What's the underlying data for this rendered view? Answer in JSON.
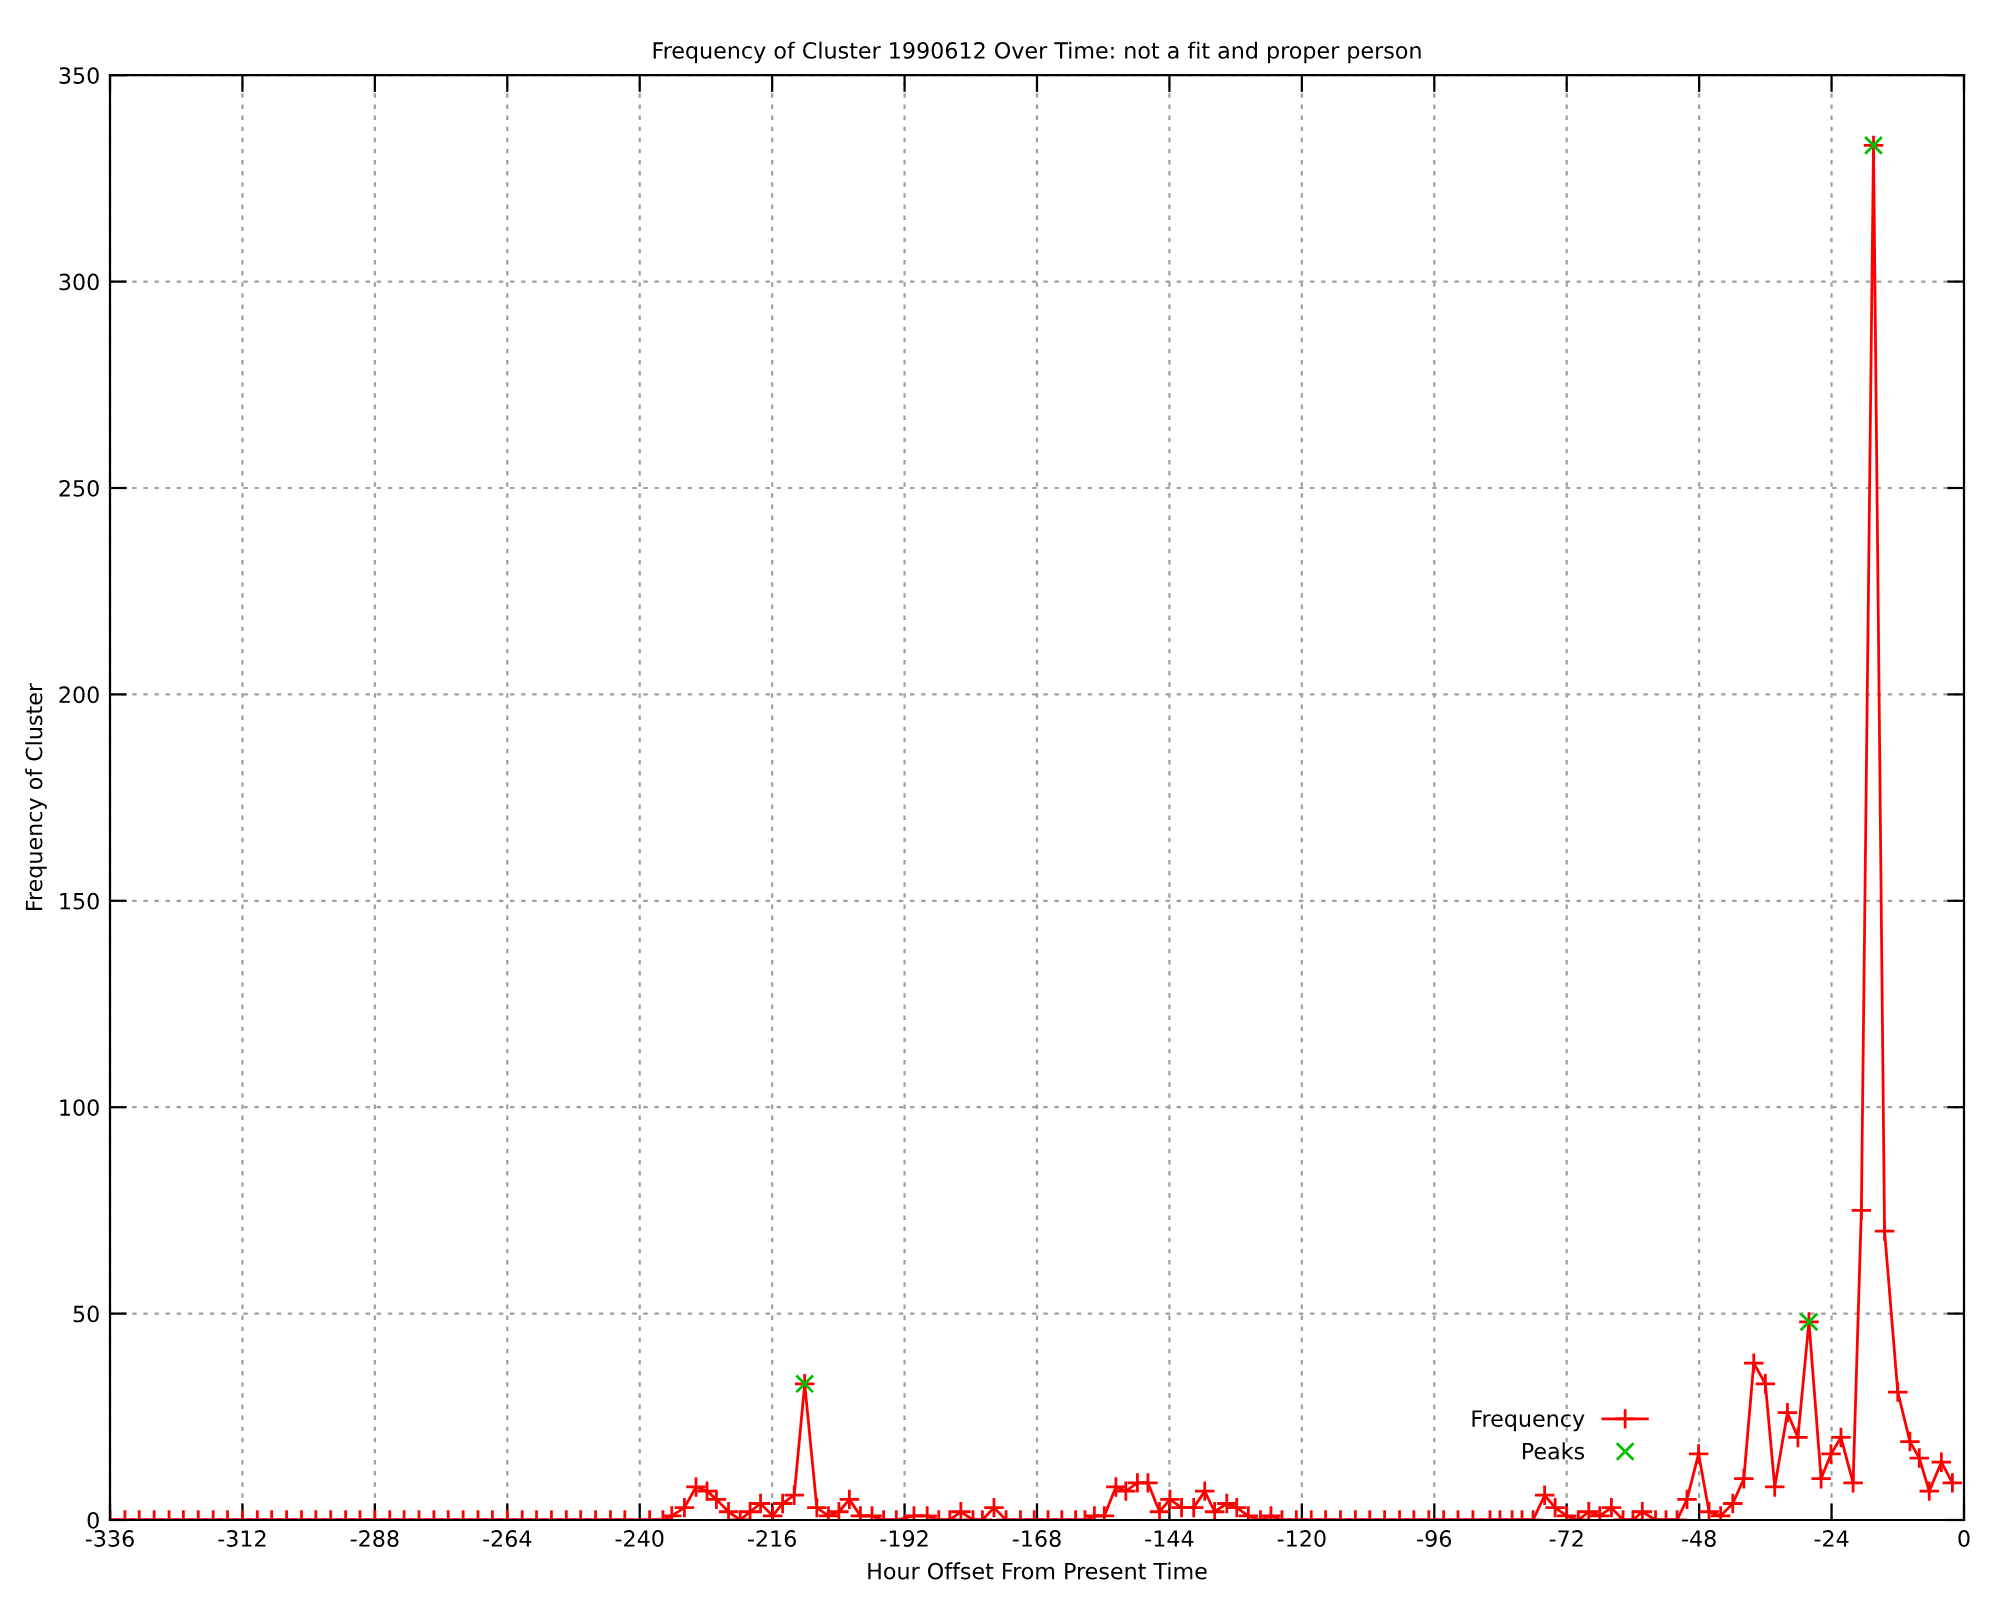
{
  "chart_data": {
    "type": "line",
    "title": "Frequency of Cluster 1990612 Over Time: not a fit and proper person",
    "xlabel": "Hour Offset From Present Time",
    "ylabel": "Frequency of Cluster",
    "xlim": [
      -336,
      0
    ],
    "ylim": [
      0,
      350
    ],
    "xticks": [
      -336,
      -312,
      -288,
      -264,
      -240,
      -216,
      -192,
      -168,
      -144,
      -120,
      -96,
      -72,
      -48,
      -24,
      0
    ],
    "yticks": [
      0,
      50,
      100,
      150,
      200,
      250,
      300,
      350
    ],
    "grid": true,
    "legend": "bottom right",
    "series": [
      {
        "name": "Frequency",
        "type": "line",
        "color": "#ff0000",
        "marker": "cross",
        "line_style": "solid",
        "x": [
          -336,
          -333.3,
          -330.7,
          -328,
          -325.3,
          -322.7,
          -320,
          -317.3,
          -314.7,
          -312,
          -309.3,
          -306.7,
          -304,
          -301.3,
          -298.7,
          -296,
          -293.3,
          -290.7,
          -288,
          -285.3,
          -282.7,
          -280,
          -277.3,
          -274.7,
          -272,
          -269.3,
          -266.7,
          -264,
          -261.3,
          -258.7,
          -256,
          -253.3,
          -250.7,
          -248,
          -245.3,
          -242.7,
          -238.2,
          -235.8,
          -234.2,
          -231.9,
          -229.8,
          -227.8,
          -226.1,
          -223.9,
          -221.8,
          -220,
          -218.1,
          -215.9,
          -214.1,
          -212,
          -210.1,
          -207.9,
          -205.8,
          -203.9,
          -202,
          -200,
          -197.9,
          -195.8,
          -193.5,
          -190.3,
          -187.9,
          -185.8,
          -183.8,
          -181.8,
          -179.6,
          -177.9,
          -175.8,
          -173.6,
          -171,
          -168.5,
          -166,
          -163.5,
          -161,
          -159.3,
          -157.6,
          -155.8,
          -153.7,
          -151.9,
          -149.8,
          -147.9,
          -145.8,
          -143.9,
          -141.8,
          -139.6,
          -137.6,
          -135.8,
          -133.6,
          -131.8,
          -129.7,
          -127.5,
          -125.6,
          -123.6,
          -121,
          -118.3,
          -115.7,
          -113,
          -110.3,
          -107.7,
          -105,
          -102.3,
          -99.7,
          -97,
          -94.3,
          -91.7,
          -89,
          -85.9,
          -84.1,
          -81.9,
          -80.1,
          -78.1,
          -76,
          -74.1,
          -72,
          -69.9,
          -68,
          -66,
          -63.9,
          -61.8,
          -60,
          -58.3,
          -55.9,
          -54,
          -52,
          -50.2,
          -48.1,
          -46.2,
          -44.1,
          -41.9,
          -39.9,
          -38.1,
          -36,
          -34.3,
          -32,
          -30.1,
          -28.1,
          -25.9,
          -24.1,
          -22.3,
          -20.1,
          -18.6,
          -16.4,
          -14.4,
          -12,
          -9.8,
          -8.1,
          -6.3,
          -4.1,
          -2.1
        ],
        "values": [
          0,
          0,
          0,
          0,
          0,
          0,
          0,
          0,
          0,
          0,
          0,
          0,
          0,
          0,
          0,
          0,
          0,
          0,
          0,
          0,
          0,
          0,
          0,
          0,
          0,
          0,
          0,
          0,
          0,
          0,
          0,
          0,
          0,
          0,
          0,
          0,
          0,
          0,
          1,
          3,
          8,
          7,
          5,
          2,
          0,
          2,
          4,
          1,
          4,
          6,
          33,
          3,
          1,
          2,
          5,
          1,
          1,
          0,
          0,
          1,
          1,
          0,
          0,
          2,
          0,
          0,
          3,
          0,
          0,
          0,
          0,
          0,
          0,
          0,
          1,
          1,
          8,
          7,
          9,
          9,
          2,
          5,
          3,
          3,
          7,
          2,
          4,
          3,
          1,
          0,
          1,
          0,
          0,
          0,
          0,
          0,
          0,
          0,
          0,
          0,
          0,
          0,
          0,
          0,
          0,
          0,
          0,
          0,
          0,
          0,
          6,
          3,
          1,
          0,
          2,
          1,
          3,
          0,
          0,
          2,
          0,
          0,
          0,
          5,
          16,
          2,
          1,
          4,
          10,
          38,
          33,
          8,
          26,
          20,
          48,
          10,
          16,
          20,
          9,
          75,
          333,
          70,
          31,
          19,
          15,
          7,
          14,
          9
        ]
      },
      {
        "name": "Peaks",
        "type": "scatter",
        "color": "#00c000",
        "marker": "cross",
        "x": [
          -210.1,
          -28.1,
          -16.4
        ],
        "values": [
          33,
          48,
          333
        ]
      }
    ]
  }
}
